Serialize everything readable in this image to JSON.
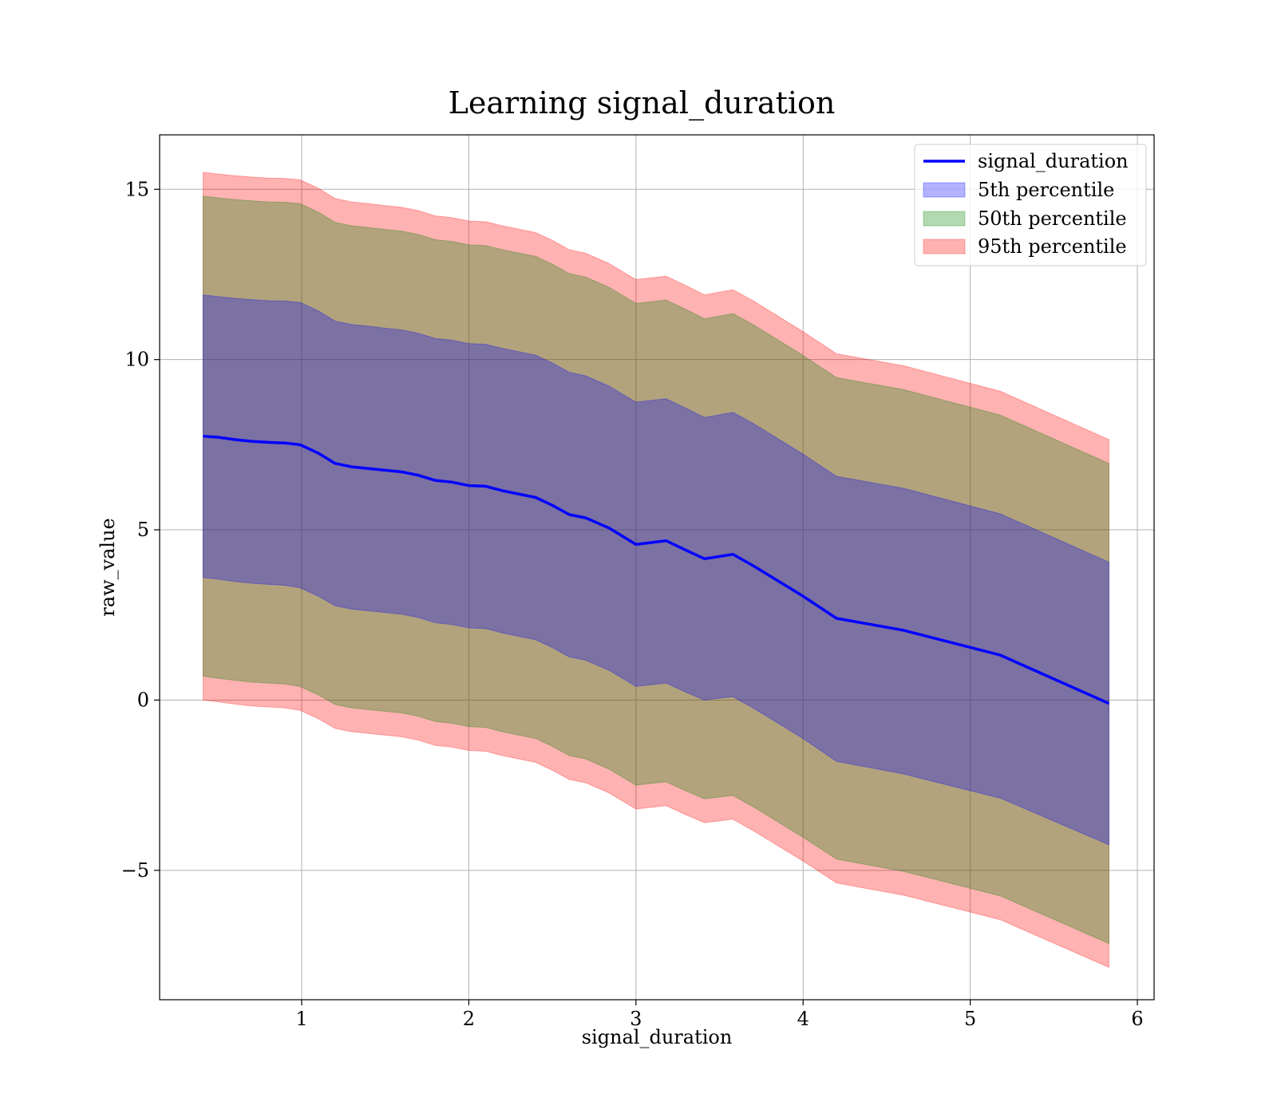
{
  "chart_data": {
    "type": "line",
    "title": "Learning signal_duration",
    "xlabel": "signal_duration",
    "ylabel": "raw_value",
    "xlim": [
      0.15,
      6.1
    ],
    "ylim": [
      -8.8,
      16.6
    ],
    "xticks": [
      1,
      2,
      3,
      4,
      5,
      6
    ],
    "yticks": [
      -5,
      0,
      5,
      10,
      15
    ],
    "xtick_labels": [
      "1",
      "2",
      "3",
      "4",
      "5",
      "6"
    ],
    "ytick_labels": [
      "−5",
      "0",
      "5",
      "10",
      "15"
    ],
    "grid": true,
    "legend_position": "top-right",
    "x": [
      0.41,
      0.5,
      0.6,
      0.7,
      0.8,
      0.9,
      0.99,
      1.1,
      1.2,
      1.3,
      1.4,
      1.5,
      1.6,
      1.7,
      1.8,
      1.9,
      2.0,
      2.1,
      2.2,
      2.3,
      2.4,
      2.5,
      2.6,
      2.7,
      2.84,
      3.0,
      3.18,
      3.3,
      3.41,
      3.58,
      3.7,
      4.0,
      4.2,
      4.6,
      5.18,
      5.83
    ],
    "series": [
      {
        "name": "signal_duration",
        "kind": "line",
        "color": "#0000ff",
        "values": [
          7.75,
          7.72,
          7.65,
          7.6,
          7.57,
          7.55,
          7.5,
          7.25,
          6.95,
          6.85,
          6.8,
          6.75,
          6.7,
          6.6,
          6.45,
          6.4,
          6.3,
          6.28,
          6.15,
          6.05,
          5.95,
          5.72,
          5.45,
          5.35,
          5.05,
          4.57,
          4.68,
          4.4,
          4.15,
          4.28,
          3.95,
          3.05,
          2.4,
          2.05,
          1.32,
          -0.1
        ]
      },
      {
        "name": "5th percentile",
        "kind": "band",
        "color": "#0000ff",
        "lower": [
          3.6,
          3.55,
          3.48,
          3.43,
          3.4,
          3.37,
          3.3,
          3.05,
          2.77,
          2.67,
          2.62,
          2.57,
          2.52,
          2.42,
          2.27,
          2.22,
          2.12,
          2.1,
          1.97,
          1.87,
          1.77,
          1.54,
          1.27,
          1.17,
          0.87,
          0.4,
          0.5,
          0.23,
          0.0,
          0.1,
          -0.23,
          -1.13,
          -1.8,
          -2.17,
          -2.88,
          -4.25
        ],
        "upper": [
          11.9,
          11.85,
          11.8,
          11.76,
          11.73,
          11.72,
          11.68,
          11.43,
          11.13,
          11.03,
          10.98,
          10.92,
          10.87,
          10.77,
          10.62,
          10.57,
          10.47,
          10.45,
          10.33,
          10.23,
          10.13,
          9.9,
          9.63,
          9.52,
          9.22,
          8.75,
          8.85,
          8.57,
          8.3,
          8.45,
          8.13,
          7.22,
          6.57,
          6.22,
          5.47,
          4.05
        ]
      },
      {
        "name": "50th percentile",
        "kind": "band",
        "color": "#008000",
        "lower": [
          0.7,
          0.64,
          0.58,
          0.53,
          0.5,
          0.47,
          0.4,
          0.15,
          -0.13,
          -0.23,
          -0.28,
          -0.33,
          -0.38,
          -0.48,
          -0.63,
          -0.68,
          -0.78,
          -0.8,
          -0.93,
          -1.03,
          -1.13,
          -1.36,
          -1.63,
          -1.73,
          -2.03,
          -2.5,
          -2.4,
          -2.67,
          -2.9,
          -2.8,
          -3.13,
          -4.03,
          -4.67,
          -5.03,
          -5.75,
          -7.15
        ],
        "upper": [
          14.8,
          14.75,
          14.7,
          14.66,
          14.63,
          14.62,
          14.58,
          14.33,
          14.03,
          13.93,
          13.88,
          13.82,
          13.77,
          13.67,
          13.52,
          13.47,
          13.37,
          13.35,
          13.23,
          13.13,
          13.03,
          12.8,
          12.53,
          12.42,
          12.12,
          11.65,
          11.75,
          11.47,
          11.2,
          11.35,
          11.03,
          10.12,
          9.47,
          9.12,
          8.37,
          6.95
        ]
      },
      {
        "name": "95th percentile",
        "kind": "band",
        "color": "#ff0000",
        "lower": [
          0.0,
          -0.05,
          -0.12,
          -0.17,
          -0.2,
          -0.23,
          -0.3,
          -0.55,
          -0.83,
          -0.93,
          -0.98,
          -1.03,
          -1.08,
          -1.18,
          -1.33,
          -1.38,
          -1.48,
          -1.5,
          -1.63,
          -1.73,
          -1.83,
          -2.06,
          -2.33,
          -2.43,
          -2.73,
          -3.2,
          -3.1,
          -3.37,
          -3.6,
          -3.5,
          -3.83,
          -4.73,
          -5.37,
          -5.73,
          -6.45,
          -7.85
        ],
        "upper": [
          15.5,
          15.45,
          15.4,
          15.36,
          15.33,
          15.32,
          15.28,
          15.03,
          14.73,
          14.63,
          14.58,
          14.52,
          14.47,
          14.37,
          14.22,
          14.17,
          14.07,
          14.05,
          13.93,
          13.83,
          13.73,
          13.5,
          13.23,
          13.12,
          12.82,
          12.35,
          12.45,
          12.17,
          11.9,
          12.05,
          11.73,
          10.82,
          10.17,
          9.82,
          9.07,
          7.65
        ]
      }
    ]
  }
}
